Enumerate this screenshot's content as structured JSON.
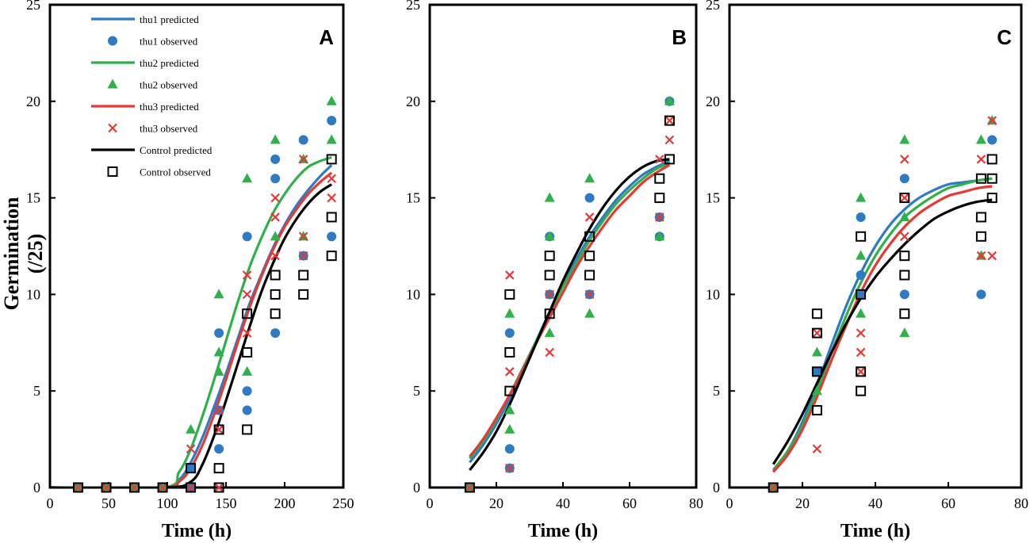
{
  "figure": {
    "ylabel": "Germination (/25)",
    "xlabel": "Time (h)"
  },
  "colors": {
    "thu1": "#2E7BC4",
    "thu2": "#2FB04A",
    "thu3": "#E53935",
    "control": "#000000"
  },
  "legend": [
    {
      "label": "thu1  predicted",
      "key": "thu1",
      "kind": "line"
    },
    {
      "label": "thu1   observed",
      "key": "thu1",
      "kind": "circle"
    },
    {
      "label": "thu2  predicted",
      "key": "thu2",
      "kind": "line"
    },
    {
      "label": "thu2  observed",
      "key": "thu2",
      "kind": "triangle"
    },
    {
      "label": "thu3  predicted",
      "key": "thu3",
      "kind": "line"
    },
    {
      "label": "thu3  observed",
      "key": "thu3",
      "kind": "cross"
    },
    {
      "label": "Control  predicted",
      "key": "control",
      "kind": "line"
    },
    {
      "label": "Control  observed",
      "key": "control",
      "kind": "square"
    }
  ],
  "chart_data": [
    {
      "type": "line",
      "panel": "A",
      "xlim": [
        0,
        250
      ],
      "ylim": [
        0,
        25
      ],
      "xticks": [
        0,
        50,
        100,
        150,
        200,
        250
      ],
      "yticks": [
        0,
        5,
        10,
        15,
        20,
        25
      ],
      "xlabel": "Time (h)",
      "ylabel": "Germination (/25)",
      "predicted": {
        "thu1": {
          "x": [
            0,
            96,
            110,
            120,
            130,
            140,
            150,
            160,
            170,
            180,
            190,
            200,
            210,
            220,
            230,
            240
          ],
          "y": [
            0,
            0,
            0.4,
            1.3,
            2.6,
            4.2,
            5.9,
            7.7,
            9.5,
            11.0,
            12.4,
            13.6,
            14.6,
            15.4,
            16.1,
            16.7
          ]
        },
        "thu2": {
          "x": [
            0,
            96,
            110,
            120,
            130,
            140,
            150,
            160,
            170,
            180,
            190,
            200,
            210,
            220,
            230,
            240
          ],
          "y": [
            0,
            0,
            0.8,
            2.0,
            3.7,
            5.6,
            7.6,
            9.6,
            11.4,
            12.9,
            14.2,
            15.2,
            16.0,
            16.6,
            16.9,
            17.1
          ]
        },
        "thu3": {
          "x": [
            0,
            96,
            110,
            120,
            130,
            140,
            150,
            160,
            170,
            180,
            190,
            200,
            210,
            220,
            230,
            240
          ],
          "y": [
            0,
            0,
            0.3,
            1.0,
            2.2,
            3.8,
            5.6,
            7.5,
            9.3,
            10.9,
            12.3,
            13.5,
            14.4,
            15.2,
            15.8,
            16.3
          ]
        },
        "control": {
          "x": [
            0,
            98,
            120,
            130,
            140,
            150,
            160,
            170,
            180,
            190,
            200,
            210,
            220,
            230,
            240
          ],
          "y": [
            0,
            0,
            0.3,
            1.2,
            2.7,
            4.5,
            6.4,
            8.3,
            10.1,
            11.6,
            12.9,
            13.9,
            14.7,
            15.3,
            15.7
          ]
        }
      },
      "observed": {
        "thu1": {
          "x": [
            24,
            48,
            72,
            96,
            120,
            120,
            144,
            144,
            144,
            168,
            168,
            168,
            192,
            192,
            192,
            216,
            216,
            240,
            240
          ],
          "y": [
            0,
            0,
            0,
            0,
            0,
            1,
            2,
            4,
            8,
            4,
            5,
            13,
            8,
            16,
            17,
            12,
            18,
            13,
            19
          ]
        },
        "thu2": {
          "x": [
            24,
            48,
            72,
            96,
            120,
            144,
            144,
            144,
            168,
            168,
            192,
            192,
            216,
            216,
            240,
            240
          ],
          "y": [
            0,
            0,
            0,
            0,
            3,
            6,
            7,
            10,
            6,
            16,
            13,
            18,
            13,
            17,
            18,
            20
          ]
        },
        "thu3": {
          "x": [
            24,
            48,
            72,
            96,
            120,
            120,
            144,
            144,
            144,
            168,
            168,
            168,
            192,
            192,
            192,
            216,
            216,
            216,
            240,
            240
          ],
          "y": [
            0,
            0,
            0,
            0,
            0,
            2,
            0,
            3,
            4,
            8,
            11,
            10,
            12,
            14,
            15,
            12,
            13,
            17,
            15,
            16
          ]
        },
        "control": {
          "x": [
            24,
            48,
            72,
            96,
            120,
            120,
            144,
            144,
            144,
            168,
            168,
            168,
            192,
            192,
            192,
            216,
            216,
            240,
            240,
            240
          ],
          "y": [
            0,
            0,
            0,
            0,
            0,
            1,
            0,
            1,
            3,
            3,
            7,
            9,
            9,
            10,
            11,
            10,
            11,
            12,
            14,
            17
          ]
        }
      }
    },
    {
      "type": "line",
      "panel": "B",
      "xlim": [
        0,
        80
      ],
      "ylim": [
        0,
        25
      ],
      "xticks": [
        0,
        20,
        40,
        60,
        80
      ],
      "yticks": [
        0,
        5,
        10,
        15,
        20,
        25
      ],
      "xlabel": "Time (h)",
      "predicted": {
        "thu1": {
          "x": [
            12,
            16,
            20,
            24,
            28,
            32,
            36,
            40,
            44,
            48,
            52,
            56,
            60,
            64,
            68,
            72
          ],
          "y": [
            1.3,
            2.2,
            3.3,
            4.6,
            6.1,
            7.6,
            9.1,
            10.5,
            11.8,
            13.0,
            14.0,
            14.9,
            15.6,
            16.2,
            16.6,
            16.9
          ]
        },
        "thu2": {
          "x": [
            12,
            16,
            20,
            24,
            28,
            32,
            36,
            40,
            44,
            48,
            52,
            56,
            60,
            64,
            68,
            72
          ],
          "y": [
            1.5,
            2.4,
            3.5,
            4.8,
            6.2,
            7.6,
            9.0,
            10.4,
            11.6,
            12.8,
            13.8,
            14.7,
            15.4,
            16.0,
            16.5,
            16.8
          ]
        },
        "thu3": {
          "x": [
            12,
            16,
            20,
            24,
            28,
            32,
            36,
            40,
            44,
            48,
            52,
            56,
            60,
            64,
            68,
            72
          ],
          "y": [
            1.6,
            2.5,
            3.6,
            4.8,
            6.1,
            7.5,
            8.8,
            10.1,
            11.4,
            12.5,
            13.5,
            14.4,
            15.1,
            15.8,
            16.3,
            16.7
          ]
        },
        "control": {
          "x": [
            12,
            16,
            20,
            24,
            28,
            32,
            36,
            40,
            44,
            48,
            52,
            56,
            60,
            64,
            68,
            72
          ],
          "y": [
            0.9,
            1.8,
            2.9,
            4.3,
            5.9,
            7.5,
            9.1,
            10.7,
            12.1,
            13.4,
            14.5,
            15.4,
            16.1,
            16.6,
            16.9,
            17.0
          ]
        }
      },
      "observed": {
        "thu1": {
          "x": [
            12,
            24,
            24,
            24,
            36,
            36,
            48,
            48,
            69,
            69,
            72
          ],
          "y": [
            0,
            1,
            2,
            8,
            10,
            13,
            10,
            15,
            13,
            14,
            20
          ]
        },
        "thu2": {
          "x": [
            12,
            24,
            24,
            24,
            36,
            36,
            36,
            48,
            48,
            69,
            72
          ],
          "y": [
            0,
            3,
            4,
            9,
            8,
            13,
            15,
            9,
            16,
            13,
            20
          ]
        },
        "thu3": {
          "x": [
            12,
            24,
            24,
            24,
            36,
            36,
            48,
            48,
            69,
            69,
            72,
            72
          ],
          "y": [
            0,
            1,
            6,
            11,
            7,
            10,
            10,
            14,
            14,
            17,
            18,
            19
          ]
        },
        "control": {
          "x": [
            12,
            24,
            24,
            24,
            36,
            36,
            36,
            48,
            48,
            48,
            69,
            69,
            72,
            72
          ],
          "y": [
            0,
            5,
            7,
            10,
            9,
            11,
            12,
            11,
            12,
            13,
            15,
            16,
            17,
            19
          ]
        }
      }
    },
    {
      "type": "line",
      "panel": "C",
      "xlim": [
        0,
        80
      ],
      "ylim": [
        0,
        25
      ],
      "xticks": [
        0,
        20,
        40,
        60,
        80
      ],
      "yticks": [
        0,
        5,
        10,
        15,
        20,
        25
      ],
      "xlabel": "Time (h)",
      "predicted": {
        "thu1": {
          "x": [
            12,
            16,
            20,
            24,
            28,
            32,
            36,
            40,
            44,
            48,
            52,
            56,
            60,
            64,
            68,
            72
          ],
          "y": [
            0.9,
            1.9,
            3.4,
            5.3,
            7.4,
            9.4,
            11.1,
            12.5,
            13.6,
            14.4,
            15.0,
            15.4,
            15.7,
            15.8,
            15.9,
            16.0
          ]
        },
        "thu2": {
          "x": [
            12,
            16,
            20,
            24,
            28,
            32,
            36,
            40,
            44,
            48,
            52,
            56,
            60,
            64,
            68,
            72
          ],
          "y": [
            0.9,
            1.9,
            3.2,
            5.0,
            7.0,
            8.9,
            10.6,
            12.0,
            13.1,
            14.0,
            14.6,
            15.1,
            15.5,
            15.7,
            15.9,
            16.0
          ]
        },
        "thu3": {
          "x": [
            12,
            16,
            20,
            24,
            28,
            32,
            36,
            40,
            44,
            48,
            52,
            56,
            60,
            64,
            68,
            72
          ],
          "y": [
            0.8,
            1.7,
            3.0,
            4.7,
            6.6,
            8.4,
            10.1,
            11.5,
            12.6,
            13.5,
            14.2,
            14.7,
            15.1,
            15.3,
            15.5,
            15.6
          ]
        },
        "control": {
          "x": [
            12,
            16,
            20,
            24,
            28,
            32,
            36,
            40,
            44,
            48,
            52,
            56,
            60,
            64,
            68,
            72
          ],
          "y": [
            1.2,
            2.4,
            3.8,
            5.4,
            7.0,
            8.5,
            9.8,
            10.9,
            11.8,
            12.6,
            13.3,
            13.9,
            14.3,
            14.6,
            14.8,
            14.9
          ]
        }
      },
      "observed": {
        "thu1": {
          "x": [
            12,
            24,
            36,
            36,
            36,
            48,
            48,
            69,
            72
          ],
          "y": [
            0,
            6,
            10,
            11,
            14,
            10,
            16,
            10,
            18
          ]
        },
        "thu2": {
          "x": [
            12,
            24,
            24,
            36,
            36,
            36,
            48,
            48,
            48,
            69,
            69,
            72
          ],
          "y": [
            0,
            7,
            5,
            9,
            12,
            15,
            8,
            14,
            18,
            12,
            18,
            19
          ]
        },
        "thu3": {
          "x": [
            12,
            24,
            24,
            36,
            36,
            36,
            48,
            48,
            48,
            69,
            69,
            72,
            72
          ],
          "y": [
            0,
            2,
            8,
            6,
            7,
            8,
            13,
            15,
            17,
            12,
            17,
            12,
            19
          ]
        },
        "control": {
          "x": [
            12,
            24,
            24,
            24,
            24,
            36,
            36,
            36,
            36,
            48,
            48,
            48,
            48,
            69,
            69,
            69,
            72,
            72,
            72
          ],
          "y": [
            0,
            4,
            6,
            8,
            9,
            5,
            6,
            10,
            13,
            9,
            11,
            12,
            15,
            13,
            14,
            16,
            15,
            16,
            17
          ]
        }
      }
    }
  ]
}
